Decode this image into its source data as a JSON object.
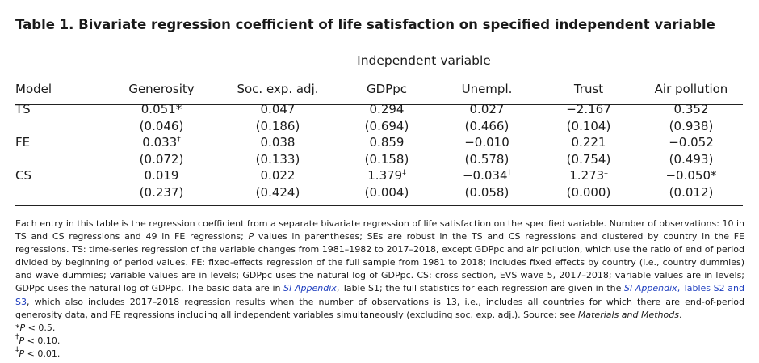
{
  "title": "Table 1. Bivariate regression coefficient of life satisfaction on specified independent variable",
  "spanner": "Independent variable",
  "header": {
    "model": "Model",
    "columns": [
      "Generosity",
      "Soc. exp. adj.",
      "GDPpc",
      "Unempl.",
      "Trust",
      "Air pollution"
    ]
  },
  "rows": [
    {
      "model": "TS",
      "coef": [
        {
          "v": "0.051*",
          "s": ""
        },
        {
          "v": "0.047",
          "s": ""
        },
        {
          "v": "0.294",
          "s": ""
        },
        {
          "v": "0.027",
          "s": ""
        },
        {
          "v": "−2.167",
          "s": ""
        },
        {
          "v": "0.352",
          "s": ""
        }
      ],
      "se": [
        "(0.046)",
        "(0.186)",
        "(0.694)",
        "(0.466)",
        "(0.104)",
        "(0.938)"
      ]
    },
    {
      "model": "FE",
      "coef": [
        {
          "v": "0.033",
          "s": "†"
        },
        {
          "v": "0.038",
          "s": ""
        },
        {
          "v": "0.859",
          "s": ""
        },
        {
          "v": "−0.010",
          "s": ""
        },
        {
          "v": "0.221",
          "s": ""
        },
        {
          "v": "−0.052",
          "s": ""
        }
      ],
      "se": [
        "(0.072)",
        "(0.133)",
        "(0.158)",
        "(0.578)",
        "(0.754)",
        "(0.493)"
      ]
    },
    {
      "model": "CS",
      "coef": [
        {
          "v": "0.019",
          "s": ""
        },
        {
          "v": "0.022",
          "s": ""
        },
        {
          "v": "1.379",
          "s": "‡"
        },
        {
          "v": "−0.034",
          "s": "†"
        },
        {
          "v": "1.273",
          "s": "‡"
        },
        {
          "v": "−0.050*",
          "s": ""
        }
      ],
      "se": [
        "(0.237)",
        "(0.424)",
        "(0.004)",
        "(0.058)",
        "(0.000)",
        "(0.012)"
      ]
    }
  ],
  "notes": {
    "part1": "Each entry in this table is the regression coefficient from a separate bivariate regression of life satisfaction on the specified variable. Number of observations: 10 in TS and CS regressions and 49 in FE regressions; ",
    "p_italic": "P",
    "part2": " values in parentheses; SEs are robust in the TS and CS regressions and clustered by country in the FE regressions. TS: time-series regression of the variable changes from 1981–1982 to 2017–2018, except GDPpc and air pollution, which use the ratio of end of period divided by beginning of period values. FE: fixed-effects regression of the full sample from 1981 to 2018; includes fixed effects by country (i.e., country dummies) and wave dummies; variable values are in levels; GDPpc uses the natural log of GDPpc. CS: cross section, EVS wave 5, 2017–2018; variable values are in levels; GDPpc uses the natural log of GDPpc. The basic data are in ",
    "link1": "SI Appendix",
    "part3": ", Table S1; the full statistics for each regression are given in the ",
    "link2": "SI Appendix",
    "link2b": ", Tables S2 and S3",
    "part4": ", which also includes 2017–2018 regression results when the number of observations is 13, i.e., includes all countries for which there are end-of-period generosity data, and FE regressions including all independent variables simultaneously (excluding soc. exp. adj.). Source: see ",
    "source": "Materials and Methods",
    "part5": ".",
    "footnotes": [
      {
        "mark": "*",
        "p": "P",
        "text": " < 0.5."
      },
      {
        "mark": "†",
        "p": "P",
        "text": " < 0.10."
      },
      {
        "mark": "‡",
        "p": "P",
        "text": " < 0.01."
      }
    ]
  }
}
